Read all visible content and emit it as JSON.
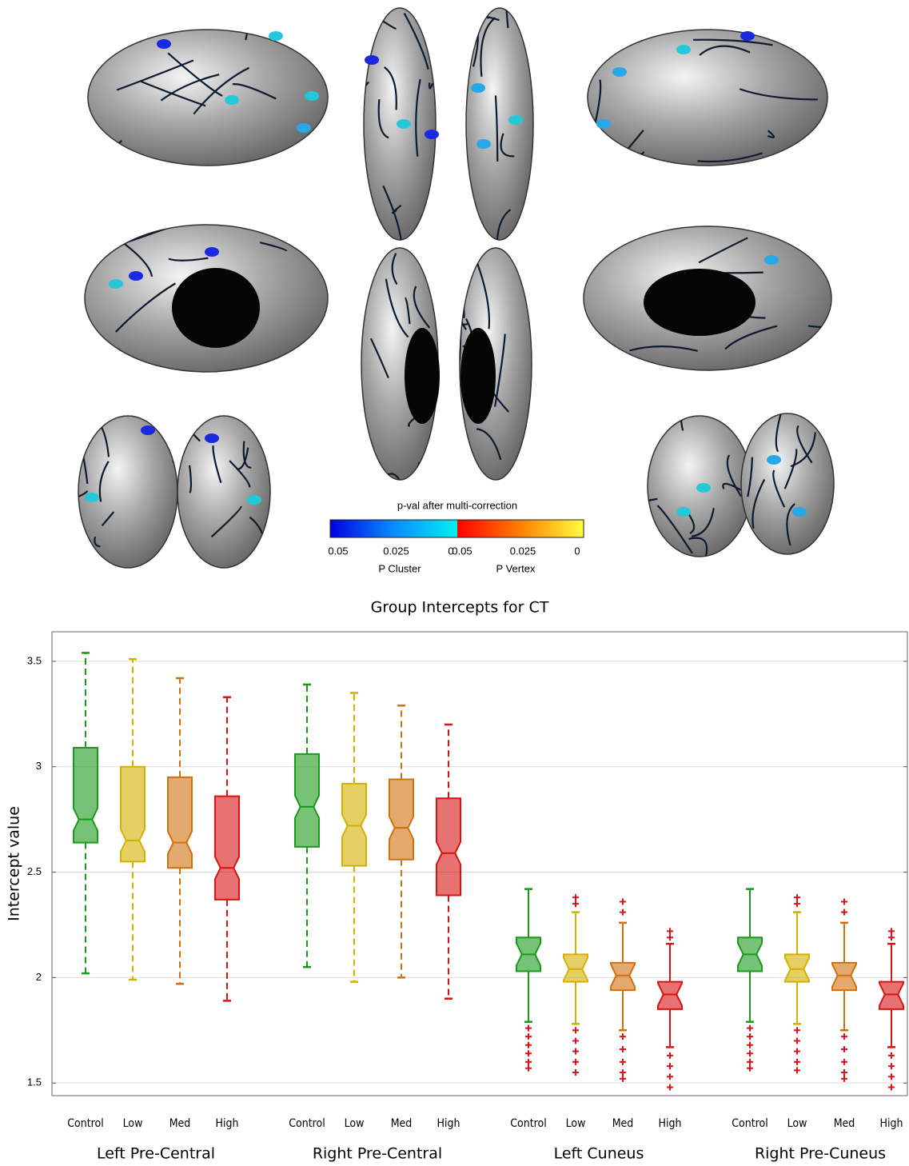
{
  "figure": {
    "colorbar": {
      "title": "p-val after multi-correction",
      "cluster_ticks": [
        0.05,
        0.025,
        0
      ],
      "vertex_ticks": [
        0.05,
        0.025,
        0
      ],
      "cluster_label": "P Cluster",
      "vertex_label": "P Vertex"
    }
  },
  "chart_data": {
    "type": "box",
    "title": "Group Intercepts for CT",
    "y_label": "Intercept value",
    "ylim": [
      1.44,
      3.64
    ],
    "yticks": [
      1.5,
      2,
      2.5,
      3,
      3.5
    ],
    "grid": true,
    "groups": [
      {
        "name": "Left Pre-Central",
        "dashed_whiskers": true,
        "boxes": [
          {
            "category": "Control",
            "color": "#1a9a1a",
            "whisker_low": 2.02,
            "q1": 2.64,
            "median": 2.75,
            "q3": 3.09,
            "whisker_high": 3.54,
            "outliers": []
          },
          {
            "category": "Low",
            "color": "#d4b000",
            "whisker_low": 1.99,
            "q1": 2.55,
            "median": 2.65,
            "q3": 3.0,
            "whisker_high": 3.51,
            "outliers": []
          },
          {
            "category": "Med",
            "color": "#d2700e",
            "whisker_low": 1.97,
            "q1": 2.52,
            "median": 2.64,
            "q3": 2.95,
            "whisker_high": 3.42,
            "outliers": []
          },
          {
            "category": "High",
            "color": "#d61414",
            "whisker_low": 1.89,
            "q1": 2.37,
            "median": 2.52,
            "q3": 2.86,
            "whisker_high": 3.33,
            "outliers": []
          }
        ]
      },
      {
        "name": "Right Pre-Central",
        "dashed_whiskers": true,
        "boxes": [
          {
            "category": "Control",
            "color": "#1a9a1a",
            "whisker_low": 2.05,
            "q1": 2.62,
            "median": 2.81,
            "q3": 3.06,
            "whisker_high": 3.39,
            "outliers": []
          },
          {
            "category": "Low",
            "color": "#d4b000",
            "whisker_low": 1.98,
            "q1": 2.53,
            "median": 2.72,
            "q3": 2.92,
            "whisker_high": 3.35,
            "outliers": []
          },
          {
            "category": "Med",
            "color": "#d2700e",
            "whisker_low": 2.0,
            "q1": 2.56,
            "median": 2.71,
            "q3": 2.94,
            "whisker_high": 3.29,
            "outliers": []
          },
          {
            "category": "High",
            "color": "#d61414",
            "whisker_low": 1.9,
            "q1": 2.39,
            "median": 2.59,
            "q3": 2.85,
            "whisker_high": 3.2,
            "outliers": []
          }
        ]
      },
      {
        "name": "Left Cuneus",
        "dashed_whiskers": false,
        "boxes": [
          {
            "category": "Control",
            "color": "#1a9a1a",
            "whisker_low": 1.79,
            "q1": 2.03,
            "median": 2.11,
            "q3": 2.19,
            "whisker_high": 2.42,
            "outliers": [
              1.76,
              1.72,
              1.68,
              1.64,
              1.6,
              1.57
            ]
          },
          {
            "category": "Low",
            "color": "#d4b000",
            "whisker_low": 1.78,
            "q1": 1.98,
            "median": 2.04,
            "q3": 2.11,
            "whisker_high": 2.31,
            "outliers": [
              2.38,
              2.35,
              1.75,
              1.7,
              1.65,
              1.6,
              1.55
            ]
          },
          {
            "category": "Med",
            "color": "#d2700e",
            "whisker_low": 1.75,
            "q1": 1.94,
            "median": 2.01,
            "q3": 2.07,
            "whisker_high": 2.26,
            "outliers": [
              2.36,
              2.31,
              1.72,
              1.66,
              1.6,
              1.55,
              1.52
            ]
          },
          {
            "category": "High",
            "color": "#d61414",
            "whisker_low": 1.67,
            "q1": 1.85,
            "median": 1.92,
            "q3": 1.98,
            "whisker_high": 2.16,
            "outliers": [
              2.22,
              2.19,
              1.63,
              1.58,
              1.53,
              1.48
            ]
          }
        ]
      },
      {
        "name": "Right Pre-Cuneus",
        "dashed_whiskers": false,
        "boxes": [
          {
            "category": "Control",
            "color": "#1a9a1a",
            "whisker_low": 1.79,
            "q1": 2.03,
            "median": 2.11,
            "q3": 2.19,
            "whisker_high": 2.42,
            "outliers": [
              1.76,
              1.72,
              1.68,
              1.64,
              1.6,
              1.57
            ]
          },
          {
            "category": "Low",
            "color": "#d4b000",
            "whisker_low": 1.78,
            "q1": 1.98,
            "median": 2.04,
            "q3": 2.11,
            "whisker_high": 2.31,
            "outliers": [
              2.38,
              2.35,
              1.75,
              1.7,
              1.65,
              1.6,
              1.56
            ]
          },
          {
            "category": "Med",
            "color": "#d2700e",
            "whisker_low": 1.75,
            "q1": 1.94,
            "median": 2.01,
            "q3": 2.07,
            "whisker_high": 2.26,
            "outliers": [
              2.36,
              2.31,
              1.72,
              1.66,
              1.6,
              1.55,
              1.52
            ]
          },
          {
            "category": "High",
            "color": "#d61414",
            "whisker_low": 1.67,
            "q1": 1.85,
            "median": 1.92,
            "q3": 1.98,
            "whisker_high": 2.16,
            "outliers": [
              2.22,
              2.19,
              1.63,
              1.58,
              1.53,
              1.48
            ]
          }
        ]
      }
    ]
  }
}
